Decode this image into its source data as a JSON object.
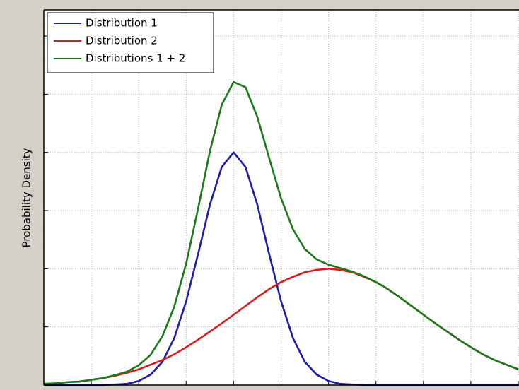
{
  "chart_data": {
    "type": "line",
    "ylabel": "Probability Density",
    "x": [
      0,
      0.25,
      0.5,
      0.75,
      1,
      1.25,
      1.5,
      1.75,
      2,
      2.25,
      2.5,
      2.75,
      3,
      3.25,
      3.5,
      3.75,
      4,
      4.25,
      4.5,
      4.75,
      5,
      5.25,
      5.5,
      5.75,
      6,
      6.25,
      6.5,
      6.75,
      7,
      7.25,
      7.5,
      7.75,
      8,
      8.25,
      8.5,
      8.75,
      9,
      9.25,
      9.5,
      9.75,
      10
    ],
    "series": [
      {
        "name": "Distribution 1",
        "color": "#1c1cb4",
        "values": [
          0,
          0,
          0,
          0,
          0,
          0,
          0.01,
          0.02,
          0.07,
          0.18,
          0.4,
          0.81,
          1.44,
          2.25,
          3.1,
          3.75,
          4,
          3.75,
          3.1,
          2.25,
          1.44,
          0.81,
          0.4,
          0.18,
          0.07,
          0.02,
          0.01,
          0,
          0,
          0,
          0,
          0,
          0,
          0,
          0,
          0,
          0,
          0,
          0,
          0,
          0
        ]
      },
      {
        "name": "Distribution 2",
        "color": "#dc1c1c",
        "values": [
          0.02,
          0.03,
          0.05,
          0.06,
          0.09,
          0.12,
          0.16,
          0.21,
          0.27,
          0.35,
          0.43,
          0.53,
          0.65,
          0.78,
          0.92,
          1.06,
          1.21,
          1.36,
          1.51,
          1.65,
          1.77,
          1.86,
          1.94,
          1.98,
          2,
          1.98,
          1.94,
          1.86,
          1.77,
          1.65,
          1.51,
          1.36,
          1.21,
          1.06,
          0.92,
          0.78,
          0.65,
          0.53,
          0.43,
          0.35,
          0.27
        ]
      },
      {
        "name": "Distributions 1 + 2",
        "color": "#1a7a1a",
        "values": [
          0.02,
          0.03,
          0.05,
          0.06,
          0.09,
          0.12,
          0.17,
          0.23,
          0.34,
          0.52,
          0.84,
          1.35,
          2.09,
          3.03,
          4.02,
          4.82,
          5.21,
          5.12,
          4.61,
          3.9,
          3.21,
          2.68,
          2.34,
          2.16,
          2.07,
          2.01,
          1.95,
          1.87,
          1.77,
          1.65,
          1.51,
          1.36,
          1.21,
          1.06,
          0.92,
          0.78,
          0.65,
          0.53,
          0.43,
          0.35,
          0.27
        ]
      }
    ],
    "xlim": [
      0,
      10
    ],
    "ylim": [
      0,
      6.45
    ],
    "xticks": [
      0,
      1,
      2,
      3,
      4,
      5,
      6,
      7,
      8,
      9,
      10
    ],
    "yticks": [
      0,
      1,
      2,
      3,
      4,
      5,
      6
    ],
    "grid": true,
    "legend": "top-left"
  }
}
